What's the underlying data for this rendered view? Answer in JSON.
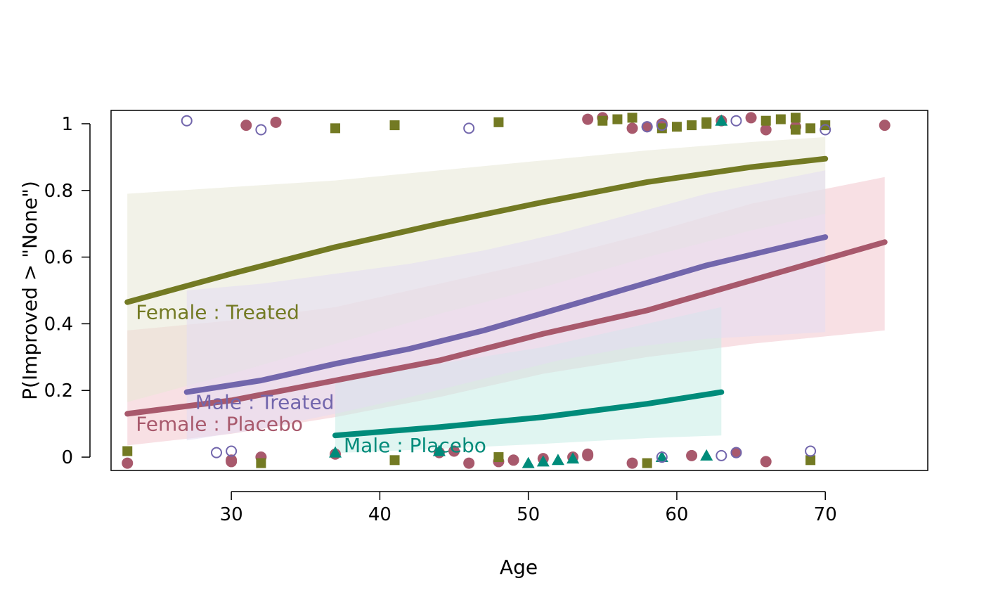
{
  "chart_data": {
    "type": "line",
    "title": "",
    "xlabel": "Age",
    "ylabel": "P(Improved > \"None\")",
    "xlim": [
      21.9,
      76.9
    ],
    "ylim": [
      -0.04,
      1.04
    ],
    "xticks": [
      30,
      40,
      50,
      60,
      70
    ],
    "xtick_labels": [
      "30",
      "40",
      "50",
      "60",
      "70"
    ],
    "yticks": [
      0,
      0.2,
      0.4,
      0.6,
      0.8,
      1
    ],
    "ytick_labels": [
      "0",
      "0.2",
      "0.4",
      "0.6",
      "0.8",
      "1"
    ],
    "grid": false,
    "legend": "direct labels on lines",
    "series": [
      {
        "name": "Female : Placebo",
        "label": "Female : Placebo",
        "color": "#A8596C",
        "band_color": "#F2C6CE",
        "marker": "filled-circle",
        "x": [
          23,
          30,
          37,
          44,
          51,
          58,
          65,
          74
        ],
        "fit": [
          0.13,
          0.17,
          0.23,
          0.29,
          0.37,
          0.44,
          0.53,
          0.645
        ],
        "lower": [
          0.035,
          0.07,
          0.12,
          0.18,
          0.25,
          0.3,
          0.34,
          0.38
        ],
        "upper": [
          0.38,
          0.41,
          0.45,
          0.52,
          0.59,
          0.67,
          0.76,
          0.84
        ],
        "points_x": [
          23,
          30,
          30,
          31,
          32,
          33,
          37,
          44,
          45,
          46,
          48,
          49,
          51,
          53,
          54,
          54,
          54,
          55,
          57,
          57,
          58,
          59,
          59,
          61,
          63,
          64,
          65,
          66,
          66,
          68,
          74
        ],
        "points_y": [
          0,
          0,
          0,
          1,
          0,
          1,
          0,
          0,
          0,
          0,
          0,
          0,
          0,
          0,
          0,
          0,
          1,
          1,
          0,
          1,
          1,
          1,
          1,
          0,
          1,
          0,
          1,
          1,
          0,
          1,
          1
        ]
      },
      {
        "name": "Female : Treated",
        "label": "Female : Treated",
        "color": "#737A23",
        "band_color": "#E8E8D6",
        "marker": "filled-square",
        "x": [
          23,
          30,
          37,
          44,
          51,
          58,
          65,
          70
        ],
        "fit": [
          0.465,
          0.55,
          0.63,
          0.7,
          0.765,
          0.825,
          0.87,
          0.895
        ],
        "lower": [
          0.165,
          0.25,
          0.34,
          0.43,
          0.51,
          0.6,
          0.68,
          0.73
        ],
        "upper": [
          0.79,
          0.81,
          0.83,
          0.86,
          0.89,
          0.92,
          0.945,
          0.96
        ],
        "points_x": [
          23,
          32,
          37,
          41,
          41,
          48,
          48,
          55,
          56,
          57,
          58,
          59,
          60,
          61,
          62,
          62,
          66,
          67,
          68,
          68,
          69,
          69,
          70
        ],
        "points_y": [
          0,
          0,
          1,
          0,
          1,
          0,
          1,
          1,
          1,
          1,
          0,
          1,
          1,
          1,
          1,
          1,
          1,
          1,
          1,
          1,
          1,
          0,
          1
        ]
      },
      {
        "name": "Male : Placebo",
        "label": "Male : Placebo",
        "color": "#008B7A",
        "band_color": "#C7ECE6",
        "marker": "filled-triangle",
        "x": [
          37,
          44,
          51,
          58,
          63
        ],
        "fit": [
          0.065,
          0.09,
          0.12,
          0.16,
          0.195
        ],
        "lower": [
          0.012,
          0.025,
          0.04,
          0.057,
          0.065
        ],
        "upper": [
          0.23,
          0.28,
          0.33,
          0.4,
          0.45
        ],
        "points_x": [
          37,
          44,
          50,
          51,
          52,
          53,
          59,
          62,
          63
        ],
        "points_y": [
          0,
          0,
          0,
          0,
          0,
          0,
          0,
          0,
          1
        ]
      },
      {
        "name": "Male : Treated",
        "label": "Male : Treated",
        "color": "#7266AC",
        "band_color": "#E4DDF2",
        "marker": "open-circle",
        "x": [
          27,
          32,
          37,
          42,
          47,
          52,
          57,
          62,
          70
        ],
        "fit": [
          0.195,
          0.23,
          0.28,
          0.325,
          0.38,
          0.445,
          0.51,
          0.575,
          0.66
        ],
        "lower": [
          0.05,
          0.085,
          0.13,
          0.18,
          0.235,
          0.29,
          0.33,
          0.355,
          0.375
        ],
        "upper": [
          0.5,
          0.52,
          0.55,
          0.58,
          0.62,
          0.67,
          0.73,
          0.79,
          0.86
        ],
        "points_x": [
          27,
          29,
          30,
          32,
          46,
          58,
          59,
          59,
          63,
          64,
          64,
          69,
          70
        ],
        "points_y": [
          1,
          0,
          0,
          1,
          1,
          1,
          1,
          0,
          0,
          1,
          0,
          0,
          1
        ]
      }
    ]
  }
}
